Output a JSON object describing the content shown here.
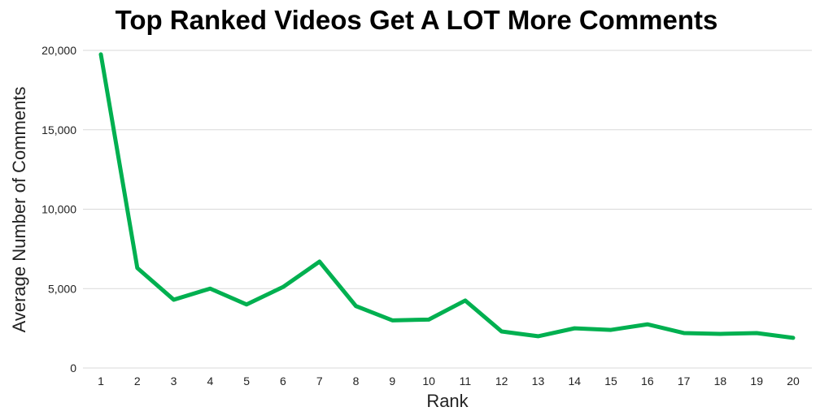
{
  "chart_data": {
    "type": "line",
    "title": "Top Ranked Videos Get A LOT More Comments",
    "xlabel": "Rank",
    "ylabel": "Average Number of Comments",
    "ylim": [
      0,
      20000
    ],
    "yticks": [
      "0",
      "5,000",
      "10,000",
      "15,000",
      "20,000"
    ],
    "yticks_values": [
      0,
      5000,
      10000,
      15000,
      20000
    ],
    "grid": true,
    "x": [
      1,
      2,
      3,
      4,
      5,
      6,
      7,
      8,
      9,
      10,
      11,
      12,
      13,
      14,
      15,
      16,
      17,
      18,
      19,
      20
    ],
    "series": [
      {
        "values": [
          19750,
          6300,
          4300,
          5000,
          4000,
          5100,
          6700,
          3900,
          3000,
          3050,
          4250,
          2300,
          2000,
          2500,
          2400,
          2750,
          2200,
          2150,
          2200,
          1900
        ],
        "color": "#00b050"
      }
    ]
  }
}
